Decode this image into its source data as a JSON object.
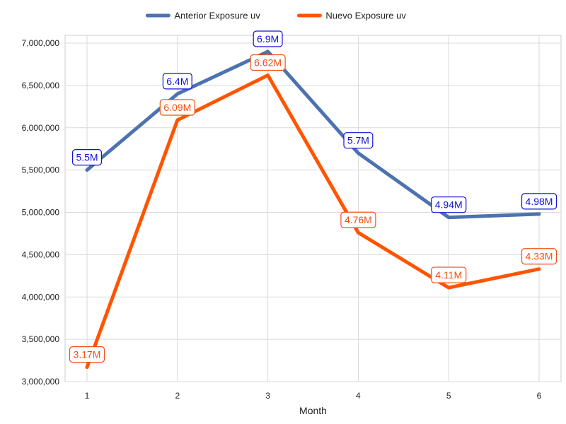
{
  "chart_data": {
    "type": "line",
    "x": [
      1,
      2,
      3,
      4,
      5,
      6
    ],
    "xlabel": "Month",
    "ylabel": "",
    "ylim": [
      3000000,
      7000000
    ],
    "yticks": [
      3000000,
      3500000,
      4000000,
      4500000,
      5000000,
      5500000,
      6000000,
      6500000,
      7000000
    ],
    "ytick_labels": [
      "3,000,000",
      "3,500,000",
      "4,000,000",
      "4,500,000",
      "5,000,000",
      "5,500,000",
      "6,000,000",
      "6,500,000",
      "7,000,000"
    ],
    "grid": true,
    "legend_position": "top-center",
    "series": [
      {
        "name": "Anterior Exposure uv",
        "color": "#4C72B0",
        "label_color": "#1010DD",
        "values": [
          5500000,
          6400000,
          6900000,
          5700000,
          4940000,
          4980000
        ],
        "labels": [
          "5.5M",
          "6.4M",
          "6.9M",
          "5.7M",
          "4.94M",
          "4.98M"
        ]
      },
      {
        "name": "Nuevo Exposure uv",
        "color": "#FF5500",
        "label_color": "#F05010",
        "values": [
          3170000,
          6090000,
          6620000,
          4760000,
          4110000,
          4330000
        ],
        "labels": [
          "3.17M",
          "6.09M",
          "6.62M",
          "4.76M",
          "4.11M",
          "4.33M"
        ]
      }
    ]
  }
}
